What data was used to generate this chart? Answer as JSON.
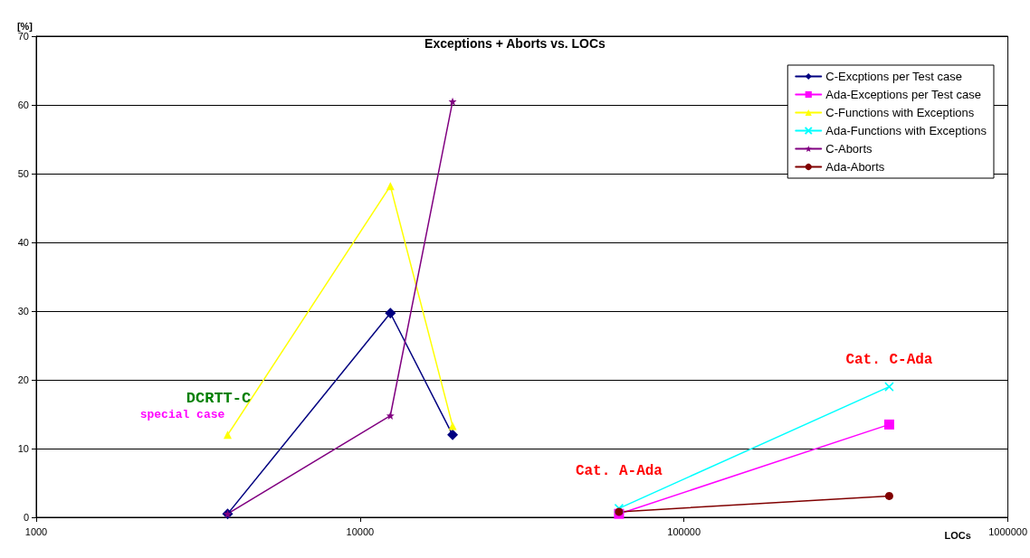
{
  "chart_data": {
    "type": "line",
    "title": "Exceptions + Aborts vs. LOCs",
    "xlabel": "LOCs",
    "ylabel": "[%]",
    "log": "x",
    "xlim": [
      1000,
      1000000
    ],
    "xticks": [
      1000,
      10000,
      100000,
      1000000
    ],
    "ylim": [
      0,
      70
    ],
    "yticks": [
      0,
      10,
      20,
      30,
      40,
      50,
      60,
      70
    ],
    "grid": "y",
    "legend": "top right",
    "line_style": "solid",
    "series": [
      {
        "name": "C-Excptions per Test case",
        "color": "#000080",
        "marker": "diamond",
        "x": [
          3900,
          12400,
          19300
        ],
        "values": [
          0.5,
          29.7,
          12.0
        ]
      },
      {
        "name": "Ada-Exceptions per Test case",
        "color": "#ff00ff",
        "marker": "square",
        "x": [
          63000,
          430000
        ],
        "values": [
          0.5,
          13.5
        ]
      },
      {
        "name": "C-Functions with Exceptions",
        "color": "#ffff00",
        "marker": "triangle",
        "x": [
          3900,
          12400,
          19300
        ],
        "values": [
          12.0,
          48.2,
          13.3
        ]
      },
      {
        "name": "Ada-Functions with Exceptions",
        "color": "#00ffff",
        "marker": "cross",
        "x": [
          63000,
          430000
        ],
        "values": [
          1.3,
          19.0
        ]
      },
      {
        "name": "C-Aborts",
        "color": "#800080",
        "marker": "star",
        "x": [
          3900,
          12400,
          19300
        ],
        "values": [
          0.5,
          14.8,
          60.5
        ]
      },
      {
        "name": "Ada-Aborts",
        "color": "#800000",
        "marker": "circle",
        "x": [
          63000,
          430000
        ],
        "values": [
          0.8,
          3.1
        ]
      }
    ],
    "annotations": [
      {
        "text": "DCRTT-C",
        "x": 3900,
        "y": 12.0
      },
      {
        "text": "special case",
        "x": 3900,
        "y": 12.0
      },
      {
        "text": "Cat. A-Ada",
        "x": 63000,
        "y": 0.8
      },
      {
        "text": "Cat. C-Ada",
        "x": 430000,
        "y": 19.0
      }
    ]
  }
}
